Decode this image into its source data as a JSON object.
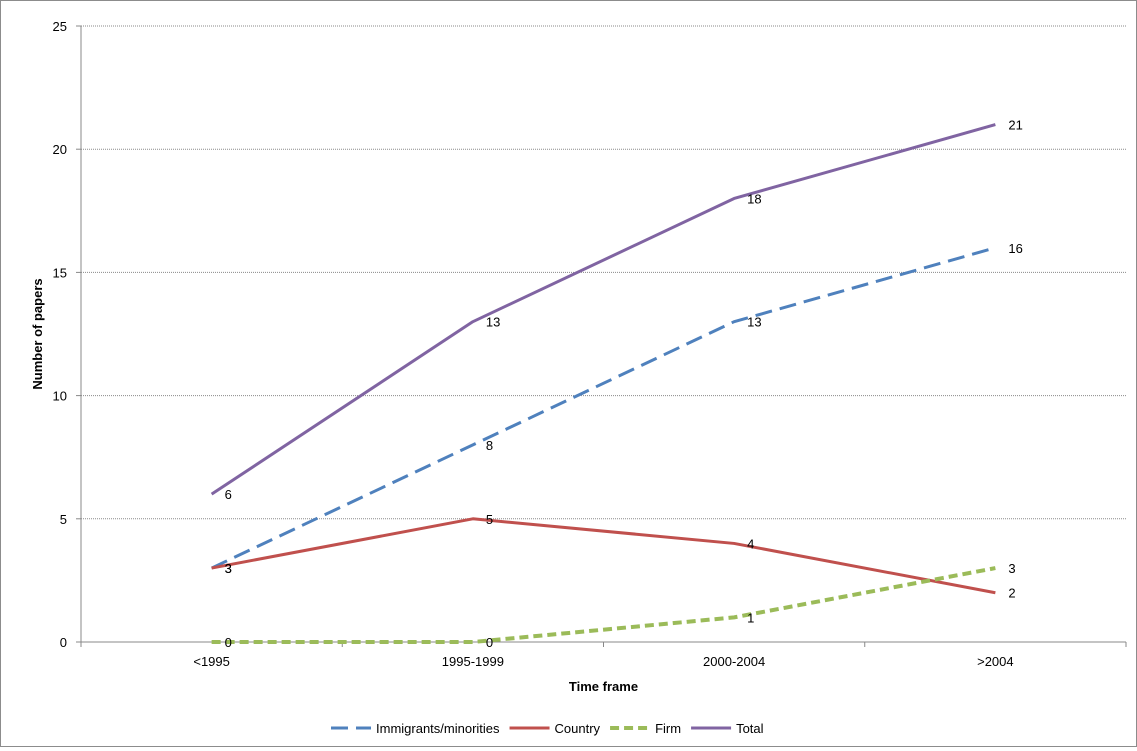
{
  "chart_data": {
    "type": "line",
    "xlabel": "Time frame",
    "ylabel": "Number of papers",
    "ylim": [
      0,
      25
    ],
    "yticks": [
      "0",
      "5",
      "10",
      "15",
      "20",
      "25"
    ],
    "categories": [
      "<1995",
      "1995-1999",
      "2000-2004",
      ">2004"
    ],
    "grid": "horizontal",
    "legend_position": "bottom",
    "series": [
      {
        "name": "Immigrants/minorities",
        "values": [
          3,
          8,
          13,
          16
        ],
        "color": "#4f81bd",
        "style": "dashed"
      },
      {
        "name": "Country",
        "values": [
          3,
          5,
          4,
          2
        ],
        "color": "#c0504d",
        "style": "solid"
      },
      {
        "name": "Firm",
        "values": [
          0,
          0,
          1,
          3
        ],
        "color": "#9bbb59",
        "style": "dotted"
      },
      {
        "name": "Total",
        "values": [
          6,
          13,
          18,
          21
        ],
        "color": "#8064a2",
        "style": "solid"
      }
    ]
  }
}
